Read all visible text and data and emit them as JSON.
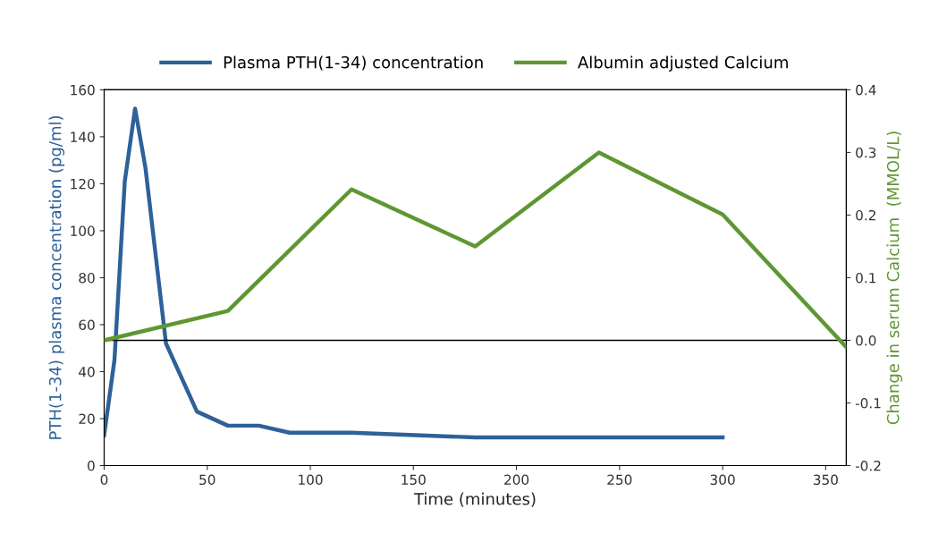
{
  "chart_data": {
    "type": "line",
    "xlabel": "Time (minutes)",
    "ylabel": "PTH(1-34) plasma concentration (pg/ml)",
    "y2label": "Change in serum Calcium  (MMOL/L)",
    "xlim": [
      0,
      360
    ],
    "xticks": [
      0,
      50,
      100,
      150,
      200,
      250,
      300,
      350
    ],
    "ylim": [
      0,
      160
    ],
    "yticks": [
      0,
      20,
      40,
      60,
      80,
      100,
      120,
      140,
      160
    ],
    "y2lim": [
      -0.2,
      0.4
    ],
    "y2ticks": [
      {
        "value": -0.2,
        "label": "-0.2"
      },
      {
        "value": -0.1,
        "label": "-0.1"
      },
      {
        "value": 0,
        "label": "0.0"
      },
      {
        "value": 0.1,
        "label": "0.1"
      },
      {
        "value": 0.2,
        "label": "0.2"
      },
      {
        "value": 0.3,
        "label": "0.3"
      },
      {
        "value": 0.4,
        "label": "0.4"
      }
    ],
    "ref_lines": [
      {
        "axis": "y2",
        "value": 0,
        "color": "#000000"
      }
    ],
    "grid": false,
    "legend": "top",
    "marker": "none",
    "line_style": "solid",
    "series": [
      {
        "name": "Plasma PTH(1-34) concentration",
        "color": "#2e6198",
        "x": [
          0,
          5,
          10,
          15,
          20,
          30,
          45,
          60,
          75,
          90,
          120,
          180,
          240,
          300
        ],
        "values": [
          13,
          45,
          121,
          152,
          127,
          52,
          23,
          17,
          17,
          14,
          14,
          12,
          12,
          12
        ]
      },
      {
        "name": "Albumin adjusted Calcium",
        "color": "#5e9732",
        "axis": "y2",
        "x": [
          0,
          60,
          120,
          180,
          240,
          300,
          360
        ],
        "values": [
          0.0,
          0.047,
          0.241,
          0.15,
          0.3,
          0.201,
          -0.011
        ]
      }
    ]
  }
}
